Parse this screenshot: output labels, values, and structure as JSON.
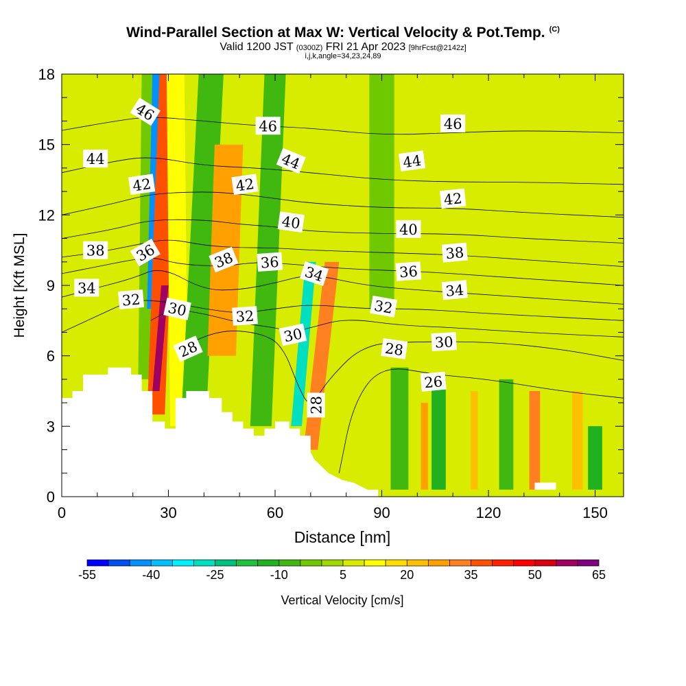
{
  "header": {
    "title": "Wind-Parallel Section at Max W: Vertical Velocity & Pot.Temp.",
    "copyright": "(C)",
    "valid_prefix": "Valid 1200 JST",
    "valid_utc": "(0300Z)",
    "valid_date": "FRI 21 Apr 2023",
    "forecast": "[9hrFcst@2142z]",
    "indices": "i,j,k,angle=34,23,24,89"
  },
  "chart_data": {
    "type": "heatmap",
    "xlabel": "Distance [nm]",
    "ylabel": "Height [Kft MSL]",
    "xlim": [
      0,
      158
    ],
    "ylim": [
      0,
      18
    ],
    "x_ticks": [
      0,
      30,
      60,
      90,
      120,
      150
    ],
    "y_ticks": [
      0,
      3,
      6,
      9,
      12,
      15,
      18
    ],
    "colorbar": {
      "label": "Vertical Velocity [cm/s]",
      "tick_labels": [
        -55,
        -40,
        -25,
        -10,
        5,
        20,
        35,
        50,
        65
      ],
      "levels": [
        -55,
        -50,
        -45,
        -40,
        -35,
        -30,
        -25,
        -20,
        -15,
        -10,
        -5,
        0,
        5,
        10,
        15,
        20,
        25,
        30,
        35,
        40,
        45,
        50,
        55,
        60,
        65
      ],
      "colors": [
        "#0000ff",
        "#0050f0",
        "#0090ff",
        "#00c0ff",
        "#00f0ff",
        "#00e0c0",
        "#00c080",
        "#20c040",
        "#20b020",
        "#40b810",
        "#70c800",
        "#a0d800",
        "#d8ec00",
        "#ffff00",
        "#ffdd00",
        "#ffc000",
        "#ffa000",
        "#ff8020",
        "#ff5000",
        "#ff2000",
        "#ff0000",
        "#d80010",
        "#a00060",
        "#800080"
      ]
    },
    "terrain": [
      [
        0,
        4.2
      ],
      [
        3,
        4.2
      ],
      [
        3,
        4.5
      ],
      [
        6,
        4.5
      ],
      [
        6,
        5.2
      ],
      [
        13,
        5.2
      ],
      [
        13,
        5.5
      ],
      [
        19.5,
        5.5
      ],
      [
        19.5,
        5.2
      ],
      [
        22.5,
        5.2
      ],
      [
        22.5,
        4.5
      ],
      [
        25.5,
        4.5
      ],
      [
        25.5,
        3.2
      ],
      [
        29,
        3.2
      ],
      [
        29,
        2.9
      ],
      [
        32,
        2.9
      ],
      [
        32,
        4.2
      ],
      [
        35,
        4.2
      ],
      [
        35,
        4.5
      ],
      [
        41.5,
        4.5
      ],
      [
        41.5,
        4.2
      ],
      [
        45,
        4.2
      ],
      [
        45,
        3.6
      ],
      [
        48,
        3.6
      ],
      [
        48,
        3.2
      ],
      [
        51,
        3.2
      ],
      [
        51,
        2.9
      ],
      [
        54,
        2.9
      ],
      [
        54,
        2.6
      ],
      [
        57,
        2.6
      ],
      [
        57,
        2.9
      ],
      [
        60,
        2.9
      ],
      [
        60,
        3.2
      ],
      [
        64,
        3.2
      ],
      [
        64,
        2.9
      ],
      [
        67,
        2.9
      ],
      [
        67,
        2.6
      ],
      [
        70,
        2.6
      ],
      [
        70,
        1.9
      ],
      [
        71,
        1.6
      ],
      [
        73,
        1.3
      ],
      [
        75,
        1.0
      ],
      [
        79,
        0.7
      ],
      [
        82,
        0.6
      ],
      [
        86,
        0.3
      ],
      [
        89,
        0.3
      ],
      [
        89,
        0.0
      ],
      [
        158,
        0.0
      ]
    ],
    "terrain_bump": [
      [
        133,
        0.3
      ],
      [
        133,
        0.6
      ],
      [
        139,
        0.6
      ],
      [
        139,
        0.3
      ]
    ],
    "velocity_bands": [
      {
        "x_top": 26,
        "x_bottom": 25,
        "y_min": 5.0,
        "y_max": 18,
        "width": 7,
        "value": -5
      },
      {
        "x_top": 27,
        "x_bottom": 25.5,
        "y_min": 8.0,
        "y_max": 18,
        "width": 3,
        "value": -45
      },
      {
        "x_top": 30,
        "x_bottom": 26.5,
        "y_min": 3.5,
        "y_max": 18,
        "width": 5,
        "value": 35
      },
      {
        "x_top": 29,
        "x_bottom": 26.5,
        "y_min": 4.5,
        "y_max": 9.0,
        "width": 2,
        "value": 55
      },
      {
        "x_top": 32,
        "x_bottom": 33,
        "y_min": 3.0,
        "y_max": 18,
        "width": 5,
        "value": 10
      },
      {
        "x_top": 42,
        "x_bottom": 37,
        "y_min": 3.0,
        "y_max": 18,
        "width": 7,
        "value": -10
      },
      {
        "x_top": 47,
        "x_bottom": 45,
        "y_min": 6.0,
        "y_max": 15,
        "width": 8,
        "value": 25
      },
      {
        "x_top": 60,
        "x_bottom": 56,
        "y_min": 3.0,
        "y_max": 18,
        "width": 6,
        "value": -10
      },
      {
        "x_top": 70,
        "x_bottom": 66,
        "y_min": 3.0,
        "y_max": 10,
        "width": 3,
        "value": -30
      },
      {
        "x_top": 76,
        "x_bottom": 70,
        "y_min": 2.0,
        "y_max": 10,
        "width": 4,
        "value": 30
      },
      {
        "x_top": 90,
        "x_bottom": 90,
        "y_min": 8.0,
        "y_max": 18,
        "width": 7,
        "value": -5
      },
      {
        "x_top": 95,
        "x_bottom": 95,
        "y_min": 0.3,
        "y_max": 5.5,
        "width": 5,
        "value": -10
      },
      {
        "x_top": 102,
        "x_bottom": 102,
        "y_min": 0.3,
        "y_max": 4.0,
        "width": 2,
        "value": 25
      },
      {
        "x_top": 106,
        "x_bottom": 106,
        "y_min": 0.3,
        "y_max": 5.0,
        "width": 4,
        "value": -15
      },
      {
        "x_top": 116,
        "x_bottom": 116,
        "y_min": 0.3,
        "y_max": 4.5,
        "width": 2,
        "value": 20
      },
      {
        "x_top": 125,
        "x_bottom": 125,
        "y_min": 0.3,
        "y_max": 5.0,
        "width": 4,
        "value": -10
      },
      {
        "x_top": 133,
        "x_bottom": 133,
        "y_min": 0.3,
        "y_max": 4.5,
        "width": 3,
        "value": 30
      },
      {
        "x_top": 145,
        "x_bottom": 145,
        "y_min": 0.3,
        "y_max": 4.5,
        "width": 3,
        "value": 20
      },
      {
        "x_top": 150,
        "x_bottom": 150,
        "y_min": 0.3,
        "y_max": 3.0,
        "width": 4,
        "value": -15
      }
    ],
    "isentropes": [
      {
        "theta": 26,
        "points": [
          [
            78,
            1.0
          ],
          [
            82,
            4.0
          ],
          [
            90,
            5.6
          ],
          [
            105,
            5.2
          ],
          [
            120,
            5.0
          ],
          [
            140,
            4.5
          ],
          [
            158,
            4.2
          ]
        ]
      },
      {
        "theta": 28,
        "points": [
          [
            35,
            6.5
          ],
          [
            45,
            7.1
          ],
          [
            55,
            7.0
          ],
          [
            62,
            6.5
          ],
          [
            67,
            4.5
          ],
          [
            70,
            3.8
          ],
          [
            75,
            5.0
          ],
          [
            85,
            6.5
          ],
          [
            100,
            6.6
          ],
          [
            120,
            6.6
          ],
          [
            140,
            6.3
          ],
          [
            158,
            5.8
          ]
        ]
      },
      {
        "theta": 30,
        "points": [
          [
            25,
            7.5
          ],
          [
            31,
            8.0
          ],
          [
            40,
            7.8
          ],
          [
            50,
            7.4
          ],
          [
            60,
            7.2
          ],
          [
            65,
            7.0
          ],
          [
            70,
            7.2
          ],
          [
            80,
            7.6
          ],
          [
            95,
            7.3
          ],
          [
            110,
            7.2
          ],
          [
            130,
            7.0
          ],
          [
            158,
            6.8
          ]
        ]
      },
      {
        "theta": 32,
        "points": [
          [
            0,
            7.0
          ],
          [
            10,
            7.7
          ],
          [
            20,
            8.4
          ],
          [
            30,
            8.3
          ],
          [
            40,
            8.0
          ],
          [
            50,
            7.8
          ],
          [
            60,
            8.0
          ],
          [
            70,
            8.2
          ],
          [
            85,
            8.0
          ],
          [
            100,
            8.0
          ],
          [
            120,
            7.8
          ],
          [
            158,
            7.5
          ]
        ]
      },
      {
        "theta": 34,
        "points": [
          [
            0,
            8.5
          ],
          [
            10,
            8.9
          ],
          [
            20,
            9.3
          ],
          [
            28,
            9.8
          ],
          [
            40,
            8.8
          ],
          [
            50,
            8.8
          ],
          [
            60,
            9.1
          ],
          [
            70,
            9.5
          ],
          [
            85,
            9.0
          ],
          [
            100,
            8.8
          ],
          [
            120,
            8.6
          ],
          [
            158,
            8.2
          ]
        ]
      },
      {
        "theta": 36,
        "points": [
          [
            0,
            9.5
          ],
          [
            10,
            9.8
          ],
          [
            20,
            10.1
          ],
          [
            26,
            10.2
          ],
          [
            33,
            9.9
          ],
          [
            45,
            9.8
          ],
          [
            55,
            10.0
          ],
          [
            65,
            9.9
          ],
          [
            80,
            9.7
          ],
          [
            100,
            9.6
          ],
          [
            120,
            9.4
          ],
          [
            158,
            9.0
          ]
        ]
      },
      {
        "theta": 38,
        "points": [
          [
            0,
            10.2
          ],
          [
            10,
            10.4
          ],
          [
            20,
            10.7
          ],
          [
            30,
            11.0
          ],
          [
            40,
            10.7
          ],
          [
            50,
            10.6
          ],
          [
            60,
            10.6
          ],
          [
            70,
            10.5
          ],
          [
            90,
            10.4
          ],
          [
            110,
            10.3
          ],
          [
            130,
            10.1
          ],
          [
            158,
            9.8
          ]
        ]
      },
      {
        "theta": 40,
        "points": [
          [
            0,
            11.0
          ],
          [
            15,
            11.4
          ],
          [
            25,
            11.8
          ],
          [
            40,
            11.8
          ],
          [
            50,
            11.6
          ],
          [
            60,
            11.5
          ],
          [
            70,
            11.3
          ],
          [
            90,
            11.2
          ],
          [
            110,
            11.2
          ],
          [
            130,
            11.0
          ],
          [
            158,
            10.8
          ]
        ]
      },
      {
        "theta": 42,
        "points": [
          [
            0,
            12.0
          ],
          [
            15,
            12.5
          ],
          [
            25,
            12.9
          ],
          [
            40,
            13.0
          ],
          [
            50,
            12.9
          ],
          [
            60,
            12.7
          ],
          [
            70,
            12.5
          ],
          [
            90,
            12.3
          ],
          [
            110,
            12.3
          ],
          [
            130,
            12.1
          ],
          [
            158,
            11.9
          ]
        ]
      },
      {
        "theta": 44,
        "points": [
          [
            0,
            13.8
          ],
          [
            15,
            14.3
          ],
          [
            25,
            14.5
          ],
          [
            40,
            14.1
          ],
          [
            55,
            14.0
          ],
          [
            70,
            13.8
          ],
          [
            90,
            13.5
          ],
          [
            110,
            13.4
          ],
          [
            130,
            13.4
          ],
          [
            158,
            13.3
          ]
        ]
      },
      {
        "theta": 46,
        "points": [
          [
            0,
            15.6
          ],
          [
            15,
            16.0
          ],
          [
            25,
            16.2
          ],
          [
            40,
            16.0
          ],
          [
            55,
            15.8
          ],
          [
            70,
            15.7
          ],
          [
            90,
            15.4
          ],
          [
            110,
            15.5
          ],
          [
            130,
            15.6
          ],
          [
            158,
            15.5
          ]
        ]
      }
    ],
    "contour_labels": [
      {
        "text": "46",
        "x": 23.5,
        "y": 16.4,
        "angle": 32
      },
      {
        "text": "46",
        "x": 58,
        "y": 15.8,
        "angle": 0
      },
      {
        "text": "46",
        "x": 110,
        "y": 15.9,
        "angle": 0
      },
      {
        "text": "44",
        "x": 9.5,
        "y": 14.4,
        "angle": 0
      },
      {
        "text": "44",
        "x": 64.5,
        "y": 14.3,
        "angle": 22
      },
      {
        "text": "44",
        "x": 98.5,
        "y": 14.3,
        "angle": -8
      },
      {
        "text": "42",
        "x": 22.5,
        "y": 13.3,
        "angle": -8
      },
      {
        "text": "42",
        "x": 51.5,
        "y": 13.3,
        "angle": -8
      },
      {
        "text": "42",
        "x": 110,
        "y": 12.7,
        "angle": -6
      },
      {
        "text": "40",
        "x": 64.5,
        "y": 11.7,
        "angle": 8
      },
      {
        "text": "40",
        "x": 97.5,
        "y": 11.4,
        "angle": 0
      },
      {
        "text": "38",
        "x": 9.5,
        "y": 10.5,
        "angle": 0
      },
      {
        "text": "38",
        "x": 45.5,
        "y": 10.1,
        "angle": -22
      },
      {
        "text": "38",
        "x": 110.5,
        "y": 10.4,
        "angle": -5
      },
      {
        "text": "36",
        "x": 23.5,
        "y": 10.4,
        "angle": -30
      },
      {
        "text": "36",
        "x": 58.5,
        "y": 10.0,
        "angle": -4
      },
      {
        "text": "36",
        "x": 97.5,
        "y": 9.6,
        "angle": -4
      },
      {
        "text": "34",
        "x": 7,
        "y": 8.9,
        "angle": 0
      },
      {
        "text": "34",
        "x": 71,
        "y": 9.5,
        "angle": 18
      },
      {
        "text": "34",
        "x": 110.5,
        "y": 8.8,
        "angle": -5
      },
      {
        "text": "32",
        "x": 19.5,
        "y": 8.4,
        "angle": -5
      },
      {
        "text": "32",
        "x": 51.5,
        "y": 7.7,
        "angle": -4
      },
      {
        "text": "32",
        "x": 90.5,
        "y": 8.1,
        "angle": 10
      },
      {
        "text": "30",
        "x": 32.5,
        "y": 8.0,
        "angle": 12
      },
      {
        "text": "30",
        "x": 65,
        "y": 6.9,
        "angle": -12
      },
      {
        "text": "30",
        "x": 107.5,
        "y": 6.6,
        "angle": -3
      },
      {
        "text": "28",
        "x": 35.5,
        "y": 6.3,
        "angle": -24
      },
      {
        "text": "28",
        "x": 93.5,
        "y": 6.3,
        "angle": 8
      },
      {
        "text": "28",
        "x": 71.5,
        "y": 3.9,
        "angle": -90
      },
      {
        "text": "26",
        "x": 104.5,
        "y": 4.9,
        "angle": -5
      }
    ]
  }
}
